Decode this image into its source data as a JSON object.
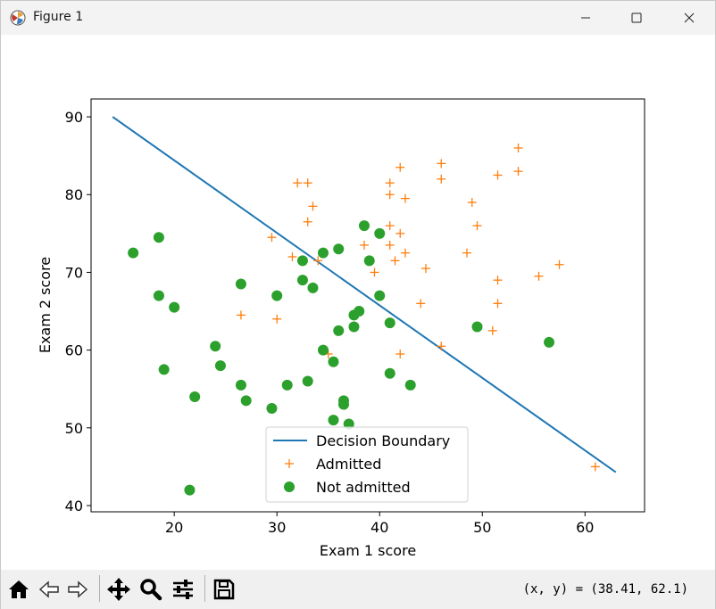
{
  "window": {
    "title": "Figure 1"
  },
  "icons": {
    "app": "matplotlib-icon",
    "minimize": "minimize-icon",
    "maximize": "maximize-icon",
    "close": "close-icon",
    "home": "home-icon",
    "back": "back-arrow-icon",
    "forward": "forward-arrow-icon",
    "pan": "move-icon",
    "zoom": "magnifier-icon",
    "subplots": "sliders-icon",
    "save": "save-icon"
  },
  "toolbar": {
    "coords": "(x, y) = (38.41, 62.1)"
  },
  "chart_data": {
    "type": "scatter",
    "xlabel": "Exam 1 score",
    "ylabel": "Exam 2 score",
    "xlim": [
      11.9,
      65.8
    ],
    "ylim": [
      39.2,
      92.3
    ],
    "xticks": [
      20,
      30,
      40,
      50,
      60
    ],
    "yticks": [
      40,
      50,
      60,
      70,
      80,
      90
    ],
    "grid": false,
    "legend_position": "lower-center",
    "series": [
      {
        "name": "Decision Boundary",
        "kind": "line",
        "color": "#1f77b4",
        "x": [
          14.0,
          63.0
        ],
        "y": [
          90.0,
          44.3
        ]
      },
      {
        "name": "Admitted",
        "kind": "marker-plus",
        "color": "#ff7f0e",
        "x": [
          26.5,
          30.0,
          29.5,
          31.5,
          32.0,
          33.0,
          33.0,
          33.5,
          34.0,
          35.0,
          38.5,
          39.5,
          41.0,
          41.0,
          41.0,
          41.0,
          41.5,
          42.0,
          42.0,
          42.0,
          42.5,
          42.5,
          44.0,
          44.5,
          46.0,
          46.0,
          46.0,
          48.5,
          49.0,
          49.5,
          51.0,
          51.5,
          51.5,
          51.5,
          53.5,
          53.5,
          55.5,
          57.5,
          61.0
        ],
        "y": [
          64.5,
          64.0,
          74.5,
          72.0,
          81.5,
          81.5,
          76.5,
          78.5,
          71.5,
          59.5,
          73.5,
          70.0,
          81.5,
          80.0,
          76.0,
          73.5,
          71.5,
          83.5,
          75.0,
          59.5,
          79.5,
          72.5,
          66.0,
          70.5,
          84.0,
          82.0,
          60.5,
          72.5,
          79.0,
          76.0,
          62.5,
          82.5,
          69.0,
          66.0,
          86.0,
          83.0,
          69.5,
          71.0,
          45.0
        ]
      },
      {
        "name": "Not admitted",
        "kind": "marker-circle",
        "color": "#2ca02c",
        "x": [
          16.0,
          18.5,
          18.5,
          19.0,
          20.0,
          21.5,
          22.0,
          24.0,
          24.5,
          26.5,
          26.5,
          27.0,
          29.5,
          30.0,
          31.0,
          32.5,
          32.5,
          33.0,
          33.5,
          34.5,
          34.5,
          35.5,
          35.5,
          36.0,
          36.0,
          36.5,
          36.5,
          37.0,
          37.5,
          37.5,
          38.0,
          38.5,
          39.0,
          40.0,
          40.0,
          41.0,
          41.0,
          43.0,
          49.5,
          56.5
        ],
        "y": [
          72.5,
          74.5,
          67.0,
          57.5,
          65.5,
          42.0,
          54.0,
          60.5,
          58.0,
          68.5,
          55.5,
          53.5,
          52.5,
          67.0,
          55.5,
          71.5,
          69.0,
          56.0,
          68.0,
          72.5,
          60.0,
          58.5,
          51.0,
          73.0,
          62.5,
          53.5,
          53.0,
          50.5,
          64.5,
          63.0,
          65.0,
          76.0,
          71.5,
          75.0,
          67.0,
          63.5,
          57.0,
          55.5,
          63.0,
          61.0
        ]
      }
    ]
  }
}
